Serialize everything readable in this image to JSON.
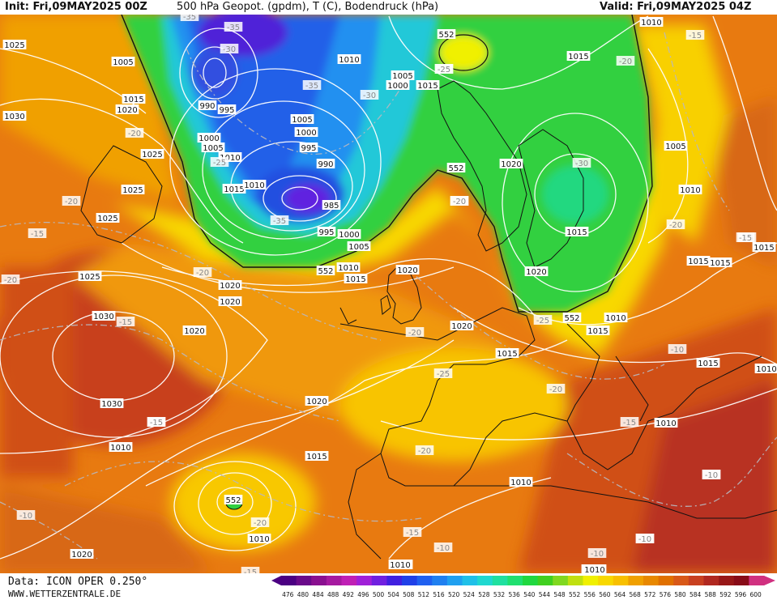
{
  "header": {
    "init": "Init: Fri,09MAY2025 00Z",
    "title": "500 hPa Geopot. (gpdm), T (C), Bodendruck (hPa)",
    "valid": "Valid: Fri,09MAY2025 04Z"
  },
  "footer": {
    "source": "Data: ICON OPER 0.250°",
    "website": "WWW.WETTERZENTRALE.DE"
  },
  "colorbar": {
    "ticks": [
      "476",
      "480",
      "484",
      "488",
      "492",
      "496",
      "500",
      "504",
      "508",
      "512",
      "516",
      "520",
      "524",
      "528",
      "532",
      "536",
      "540",
      "544",
      "548",
      "552",
      "556",
      "560",
      "564",
      "568",
      "572",
      "576",
      "580",
      "584",
      "588",
      "592",
      "596",
      "600"
    ],
    "colors": [
      "#4b0082",
      "#6a0a8a",
      "#8a1090",
      "#a61aa0",
      "#c020b5",
      "#a020d8",
      "#7020e0",
      "#4020e0",
      "#2040e8",
      "#2060f0",
      "#2080f0",
      "#20a0f0",
      "#20c0e8",
      "#20d8d0",
      "#20e0a0",
      "#20e070",
      "#20d840",
      "#40d020",
      "#80d820",
      "#c0e010",
      "#f0f000",
      "#f8d800",
      "#f8c000",
      "#f0a000",
      "#e88800",
      "#e07000",
      "#d85818",
      "#c84020",
      "#b02820",
      "#981818",
      "#880c18",
      "#d03080"
    ]
  },
  "pressure_labels": [
    {
      "id": "p1",
      "text": "1005"
    },
    {
      "id": "p2",
      "text": "1015"
    },
    {
      "id": "p3",
      "text": "1020"
    },
    {
      "id": "p4",
      "text": "1025"
    },
    {
      "id": "p5",
      "text": "1030"
    },
    {
      "id": "p6",
      "text": "1025"
    },
    {
      "id": "p7",
      "text": "990"
    },
    {
      "id": "p8",
      "text": "995"
    },
    {
      "id": "p9",
      "text": "1000"
    },
    {
      "id": "p10",
      "text": "1005"
    },
    {
      "id": "p11",
      "text": "1010"
    },
    {
      "id": "p12",
      "text": "1015"
    },
    {
      "id": "p13",
      "text": "1010"
    },
    {
      "id": "p14",
      "text": "1005"
    },
    {
      "id": "p15",
      "text": "1000"
    },
    {
      "id": "p16",
      "text": "995"
    },
    {
      "id": "p17",
      "text": "990"
    },
    {
      "id": "p18",
      "text": "985"
    },
    {
      "id": "p19",
      "text": "995"
    },
    {
      "id": "p20",
      "text": "1000"
    },
    {
      "id": "p21",
      "text": "1005"
    },
    {
      "id": "p22",
      "text": "1010"
    },
    {
      "id": "p23",
      "text": "1015"
    },
    {
      "id": "p24",
      "text": "1020"
    },
    {
      "id": "p25",
      "text": "1020"
    },
    {
      "id": "p26",
      "text": "1020"
    },
    {
      "id": "p27",
      "text": "1010"
    },
    {
      "id": "p28",
      "text": "1005"
    },
    {
      "id": "p29",
      "text": "1000"
    },
    {
      "id": "p30",
      "text": "1015"
    },
    {
      "id": "p31",
      "text": "1015"
    },
    {
      "id": "p32",
      "text": "1010"
    },
    {
      "id": "p33",
      "text": "1005"
    },
    {
      "id": "p34",
      "text": "1020"
    },
    {
      "id": "p35",
      "text": "1010"
    },
    {
      "id": "p36",
      "text": "1015"
    },
    {
      "id": "p37",
      "text": "1020"
    },
    {
      "id": "p38",
      "text": "1010"
    },
    {
      "id": "p39",
      "text": "1015"
    },
    {
      "id": "p40",
      "text": "1015"
    },
    {
      "id": "p41",
      "text": "1015"
    },
    {
      "id": "p42",
      "text": "1010"
    },
    {
      "id": "p43",
      "text": "1030"
    },
    {
      "id": "p44",
      "text": "1030"
    },
    {
      "id": "p45",
      "text": "1025"
    },
    {
      "id": "p46",
      "text": "1020"
    },
    {
      "id": "p47",
      "text": "1015"
    },
    {
      "id": "p48",
      "text": "1010"
    },
    {
      "id": "p49",
      "text": "1020"
    },
    {
      "id": "p50",
      "text": "1010"
    },
    {
      "id": "p51",
      "text": "1010"
    },
    {
      "id": "p52",
      "text": "1010"
    },
    {
      "id": "p53",
      "text": "1015"
    },
    {
      "id": "p54",
      "text": "1020"
    },
    {
      "id": "p55",
      "text": "1025"
    },
    {
      "id": "p56",
      "text": "1025"
    },
    {
      "id": "p57",
      "text": "1020"
    },
    {
      "id": "p58",
      "text": "1015"
    },
    {
      "id": "p59",
      "text": "1015"
    },
    {
      "id": "p60",
      "text": "1010"
    },
    {
      "id": "p61",
      "text": "1005"
    },
    {
      "id": "p62",
      "text": "1010"
    },
    {
      "id": "p63",
      "text": "1010"
    }
  ],
  "temperature_labels": [
    {
      "id": "t1",
      "text": "-35"
    },
    {
      "id": "t2",
      "text": "-35"
    },
    {
      "id": "t3",
      "text": "-35"
    },
    {
      "id": "t4",
      "text": "-30"
    },
    {
      "id": "t5",
      "text": "-25"
    },
    {
      "id": "t6",
      "text": "-20"
    },
    {
      "id": "t7",
      "text": "-20"
    },
    {
      "id": "t8",
      "text": "-15"
    },
    {
      "id": "t9",
      "text": "-20"
    },
    {
      "id": "t10",
      "text": "-15"
    },
    {
      "id": "t11",
      "text": "-20"
    },
    {
      "id": "t12",
      "text": "-35"
    },
    {
      "id": "t13",
      "text": "-25"
    },
    {
      "id": "t14",
      "text": "-20"
    },
    {
      "id": "t15",
      "text": "-20"
    },
    {
      "id": "t16",
      "text": "-25"
    },
    {
      "id": "t17",
      "text": "-20"
    },
    {
      "id": "t18",
      "text": "-15"
    },
    {
      "id": "t19",
      "text": "-20"
    },
    {
      "id": "t20",
      "text": "-15"
    },
    {
      "id": "t21",
      "text": "-10"
    },
    {
      "id": "t22",
      "text": "-15"
    },
    {
      "id": "t23",
      "text": "-10"
    },
    {
      "id": "t24",
      "text": "-10"
    },
    {
      "id": "t25",
      "text": "-15"
    },
    {
      "id": "t26",
      "text": "-20"
    },
    {
      "id": "t27",
      "text": "-30"
    },
    {
      "id": "t28",
      "text": "-20"
    },
    {
      "id": "t29",
      "text": "-15"
    },
    {
      "id": "t30",
      "text": "-25"
    },
    {
      "id": "t31",
      "text": "-20"
    },
    {
      "id": "t32",
      "text": "-15"
    },
    {
      "id": "t33",
      "text": "-10"
    },
    {
      "id": "t34",
      "text": "-10"
    },
    {
      "id": "t35",
      "text": "-10"
    },
    {
      "id": "t36",
      "text": "-15"
    },
    {
      "id": "t37",
      "text": "-30"
    },
    {
      "id": "t38",
      "text": "-25"
    },
    {
      "id": "t39",
      "text": "-20"
    },
    {
      "id": "t40",
      "text": "-15"
    },
    {
      "id": "t41",
      "text": "-10"
    },
    {
      "id": "t42",
      "text": "-10"
    }
  ],
  "geopotential_labels": [
    {
      "id": "g1",
      "text": "552"
    },
    {
      "id": "g2",
      "text": "552"
    },
    {
      "id": "g3",
      "text": "552"
    },
    {
      "id": "g4",
      "text": "552"
    },
    {
      "id": "g5",
      "text": "552"
    }
  ]
}
